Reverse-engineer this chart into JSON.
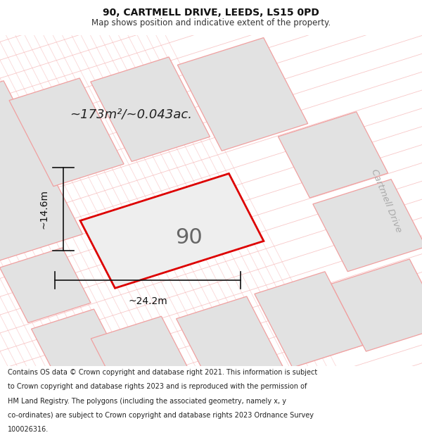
{
  "title_line1": "90, CARTMELL DRIVE, LEEDS, LS15 0PD",
  "title_line2": "Map shows position and indicative extent of the property.",
  "area_label": "~173m²/~0.043ac.",
  "house_number": "90",
  "dim_width": "~24.2m",
  "dim_height": "~14.6m",
  "road_label": "Cartmell Drive",
  "footer_lines": [
    "Contains OS data © Crown copyright and database right 2021. This information is subject",
    "to Crown copyright and database rights 2023 and is reproduced with the permission of",
    "HM Land Registry. The polygons (including the associated geometry, namely x, y",
    "co-ordinates) are subject to Crown copyright and database rights 2023 Ordnance Survey",
    "100026316."
  ],
  "bg_color": "#ffffff",
  "map_bg": "#ffffff",
  "building_fill": "#e2e2e2",
  "building_edge": "#f0a0a0",
  "highlight_fill": "#eeeeee",
  "highlight_edge": "#dd0000",
  "diag_line_color": "#f5b0b0",
  "title_color": "#111111",
  "subtitle_color": "#333333",
  "footer_color": "#222222",
  "road_label_color": "#aaaaaa",
  "dim_color": "#111111",
  "rotation_deg": 22
}
